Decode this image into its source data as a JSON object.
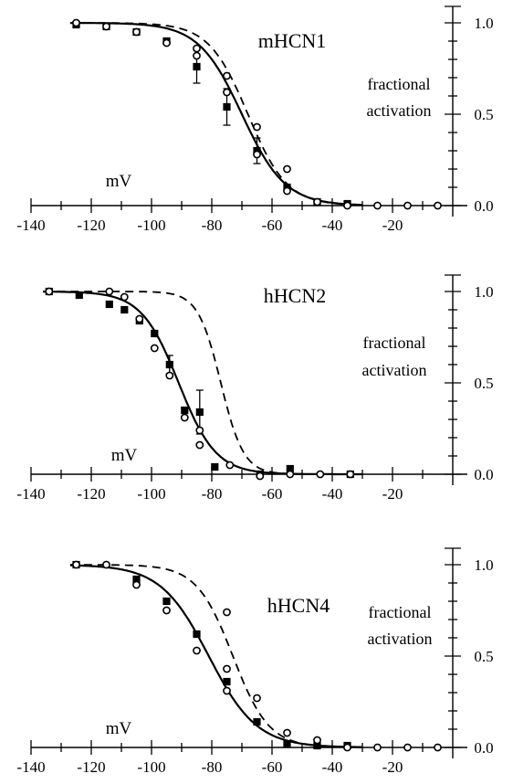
{
  "chart_data": [
    {
      "type": "line",
      "title": "mHCN1",
      "xlabel": "mV",
      "ylabel": [
        "fractional",
        "activation"
      ],
      "xlim": [
        -140,
        0
      ],
      "ylim": [
        0,
        1
      ],
      "x_ticks": [
        -140,
        -120,
        -100,
        -80,
        -60,
        -40,
        -20
      ],
      "y_ticks": [
        0.0,
        0.5,
        1.0
      ],
      "y_tick_labels": [
        "0.0",
        "0.5",
        "1.0"
      ],
      "grid": false,
      "series": [
        {
          "marker": "filled-square",
          "line": "solid",
          "boltzmann_v_half": -70,
          "boltzmann_slope": 7.2,
          "points": [
            {
              "x": -125,
              "y": 0.99
            },
            {
              "x": -115,
              "y": 0.98
            },
            {
              "x": -105,
              "y": 0.95
            },
            {
              "x": -95,
              "y": 0.9
            },
            {
              "x": -85,
              "y": 0.76,
              "err": 0.09
            },
            {
              "x": -75,
              "y": 0.54,
              "err": 0.1
            },
            {
              "x": -65,
              "y": 0.3,
              "err": 0.07
            },
            {
              "x": -55,
              "y": 0.1
            },
            {
              "x": -45,
              "y": 0.02
            },
            {
              "x": -35,
              "y": 0.01
            }
          ]
        },
        {
          "marker": "open-circle",
          "line": "dashed",
          "boltzmann_v_half": -68,
          "boltzmann_slope": 6.5,
          "points": [
            {
              "x": -125,
              "y": 1.0
            },
            {
              "x": -115,
              "y": 0.98
            },
            {
              "x": -105,
              "y": 0.95
            },
            {
              "x": -95,
              "y": 0.89
            },
            {
              "x": -85,
              "y": 0.86
            },
            {
              "x": -85,
              "y": 0.82
            },
            {
              "x": -75,
              "y": 0.71
            },
            {
              "x": -75,
              "y": 0.62
            },
            {
              "x": -65,
              "y": 0.43
            },
            {
              "x": -65,
              "y": 0.28
            },
            {
              "x": -55,
              "y": 0.2
            },
            {
              "x": -55,
              "y": 0.08
            },
            {
              "x": -45,
              "y": 0.02
            },
            {
              "x": -35,
              "y": 0.0
            },
            {
              "x": -25,
              "y": 0.0
            },
            {
              "x": -15,
              "y": 0.0
            },
            {
              "x": -5,
              "y": 0.0
            }
          ]
        }
      ]
    },
    {
      "type": "line",
      "title": "hHCN2",
      "xlabel": "mV",
      "ylabel": [
        "fractional",
        "activation"
      ],
      "xlim": [
        -140,
        0
      ],
      "ylim": [
        0,
        1
      ],
      "x_ticks": [
        -140,
        -120,
        -100,
        -80,
        -60,
        -40,
        -20
      ],
      "y_ticks": [
        0.0,
        0.5,
        1.0
      ],
      "y_tick_labels": [
        "0.0",
        "0.5",
        "1.0"
      ],
      "grid": false,
      "series": [
        {
          "marker": "filled-square",
          "line": "solid",
          "boltzmann_v_half": -91,
          "boltzmann_slope": 6.2,
          "points": [
            {
              "x": -134,
              "y": 1.0
            },
            {
              "x": -124,
              "y": 0.98
            },
            {
              "x": -114,
              "y": 0.93
            },
            {
              "x": -109,
              "y": 0.9
            },
            {
              "x": -104,
              "y": 0.84
            },
            {
              "x": -99,
              "y": 0.77
            },
            {
              "x": -94,
              "y": 0.6,
              "err": 0.05
            },
            {
              "x": -89,
              "y": 0.35
            },
            {
              "x": -84,
              "y": 0.34,
              "err": 0.12
            },
            {
              "x": -79,
              "y": 0.04
            },
            {
              "x": -64,
              "y": 0.0
            },
            {
              "x": -54,
              "y": 0.03
            },
            {
              "x": -34,
              "y": 0.0
            }
          ]
        },
        {
          "marker": "open-circle",
          "line": "dashed",
          "boltzmann_v_half": -77,
          "boltzmann_slope": 3.8,
          "points": [
            {
              "x": -134,
              "y": 1.0
            },
            {
              "x": -114,
              "y": 1.0
            },
            {
              "x": -109,
              "y": 0.97
            },
            {
              "x": -104,
              "y": 0.85
            },
            {
              "x": -99,
              "y": 0.69
            },
            {
              "x": -94,
              "y": 0.54
            },
            {
              "x": -89,
              "y": 0.31
            },
            {
              "x": -84,
              "y": 0.24
            },
            {
              "x": -84,
              "y": 0.16
            },
            {
              "x": -74,
              "y": 0.05
            },
            {
              "x": -64,
              "y": -0.01
            },
            {
              "x": -54,
              "y": 0.0
            },
            {
              "x": -44,
              "y": 0.0
            },
            {
              "x": -34,
              "y": 0.0
            }
          ]
        }
      ]
    },
    {
      "type": "line",
      "title": "hHCN4",
      "xlabel": "mV",
      "ylabel": [
        "fractional",
        "activation"
      ],
      "xlim": [
        -140,
        0
      ],
      "ylim": [
        0,
        1
      ],
      "x_ticks": [
        -140,
        -120,
        -100,
        -80,
        -60,
        -40,
        -20
      ],
      "y_ticks": [
        0.0,
        0.5,
        1.0
      ],
      "y_tick_labels": [
        "0.0",
        "0.5",
        "1.0"
      ],
      "grid": false,
      "series": [
        {
          "marker": "filled-square",
          "line": "solid",
          "boltzmann_v_half": -81,
          "boltzmann_slope": 8,
          "points": [
            {
              "x": -125,
              "y": 1.0
            },
            {
              "x": -105,
              "y": 0.92
            },
            {
              "x": -95,
              "y": 0.8
            },
            {
              "x": -85,
              "y": 0.62
            },
            {
              "x": -75,
              "y": 0.36
            },
            {
              "x": -65,
              "y": 0.14
            },
            {
              "x": -55,
              "y": 0.02
            },
            {
              "x": -45,
              "y": 0.01
            },
            {
              "x": -35,
              "y": 0.01
            }
          ]
        },
        {
          "marker": "open-circle",
          "line": "dashed",
          "boltzmann_v_half": -73,
          "boltzmann_slope": 6,
          "points": [
            {
              "x": -125,
              "y": 1.0
            },
            {
              "x": -115,
              "y": 1.0
            },
            {
              "x": -105,
              "y": 0.89
            },
            {
              "x": -95,
              "y": 0.75
            },
            {
              "x": -85,
              "y": 0.53
            },
            {
              "x": -75,
              "y": 0.74
            },
            {
              "x": -75,
              "y": 0.43
            },
            {
              "x": -75,
              "y": 0.31
            },
            {
              "x": -65,
              "y": 0.27
            },
            {
              "x": -55,
              "y": 0.08
            },
            {
              "x": -45,
              "y": 0.04
            },
            {
              "x": -35,
              "y": 0.0
            },
            {
              "x": -25,
              "y": 0.0
            },
            {
              "x": -15,
              "y": 0.0
            },
            {
              "x": -5,
              "y": 0.0
            }
          ]
        }
      ]
    }
  ]
}
